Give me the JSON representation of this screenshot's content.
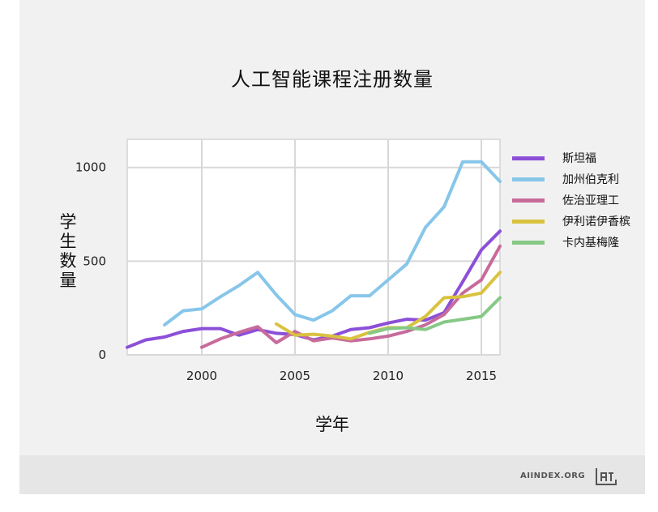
{
  "chart_data": {
    "type": "line",
    "title": "人工智能课程注册数量",
    "xlabel": "学年",
    "ylabel": "学生数量",
    "xlim": [
      1996,
      2016
    ],
    "ylim": [
      0,
      1150
    ],
    "xticks": [
      2000,
      2005,
      2010,
      2015
    ],
    "yticks": [
      0,
      500,
      1000
    ],
    "grid": true,
    "legend_position": "right",
    "series": [
      {
        "name": "斯坦福",
        "color": "#8c4fd8",
        "points": [
          [
            1996,
            40
          ],
          [
            1997,
            80
          ],
          [
            1998,
            95
          ],
          [
            1999,
            125
          ],
          [
            2000,
            140
          ],
          [
            2001,
            140
          ],
          [
            2002,
            105
          ],
          [
            2003,
            135
          ],
          [
            2004,
            115
          ],
          [
            2005,
            108
          ],
          [
            2006,
            80
          ],
          [
            2007,
            100
          ],
          [
            2008,
            135
          ],
          [
            2009,
            145
          ],
          [
            2010,
            170
          ],
          [
            2011,
            190
          ],
          [
            2012,
            185
          ],
          [
            2013,
            225
          ],
          [
            2014,
            390
          ],
          [
            2015,
            560
          ],
          [
            2016,
            660
          ]
        ]
      },
      {
        "name": "加州伯克利",
        "color": "#87c6ea",
        "points": [
          [
            1998,
            160
          ],
          [
            1999,
            235
          ],
          [
            2000,
            245
          ],
          [
            2001,
            310
          ],
          [
            2002,
            370
          ],
          [
            2003,
            440
          ],
          [
            2004,
            320
          ],
          [
            2005,
            215
          ],
          [
            2006,
            185
          ],
          [
            2007,
            235
          ],
          [
            2008,
            315
          ],
          [
            2009,
            315
          ],
          [
            2010,
            400
          ],
          [
            2011,
            485
          ],
          [
            2012,
            680
          ],
          [
            2013,
            790
          ],
          [
            2014,
            1030
          ],
          [
            2015,
            1030
          ],
          [
            2016,
            925
          ]
        ]
      },
      {
        "name": "佐治亚理工",
        "color": "#c76b9c",
        "points": [
          [
            2000,
            40
          ],
          [
            2001,
            85
          ],
          [
            2002,
            120
          ],
          [
            2003,
            150
          ],
          [
            2004,
            65
          ],
          [
            2005,
            125
          ],
          [
            2006,
            75
          ],
          [
            2007,
            90
          ],
          [
            2008,
            75
          ],
          [
            2009,
            85
          ],
          [
            2010,
            100
          ],
          [
            2011,
            125
          ],
          [
            2012,
            160
          ],
          [
            2013,
            215
          ],
          [
            2014,
            330
          ],
          [
            2015,
            400
          ],
          [
            2016,
            580
          ]
        ]
      },
      {
        "name": "伊利诺伊香槟",
        "color": "#d9c23f",
        "points": [
          [
            2004,
            165
          ],
          [
            2005,
            105
          ],
          [
            2006,
            110
          ],
          [
            2007,
            100
          ],
          [
            2008,
            85
          ],
          [
            2009,
            120
          ],
          [
            2010,
            145
          ],
          [
            2011,
            145
          ],
          [
            2012,
            205
          ],
          [
            2013,
            305
          ],
          [
            2014,
            310
          ],
          [
            2015,
            330
          ],
          [
            2016,
            440
          ]
        ]
      },
      {
        "name": "卡内基梅隆",
        "color": "#86c986",
        "points": [
          [
            2009,
            115
          ],
          [
            2010,
            140
          ],
          [
            2011,
            145
          ],
          [
            2012,
            135
          ],
          [
            2013,
            175
          ],
          [
            2014,
            190
          ],
          [
            2015,
            205
          ],
          [
            2016,
            305
          ]
        ]
      }
    ]
  },
  "footer": {
    "source": "AIINDEX.ORG",
    "logo_text": "AI",
    "logo_icon": "ai-index-logo-icon"
  }
}
